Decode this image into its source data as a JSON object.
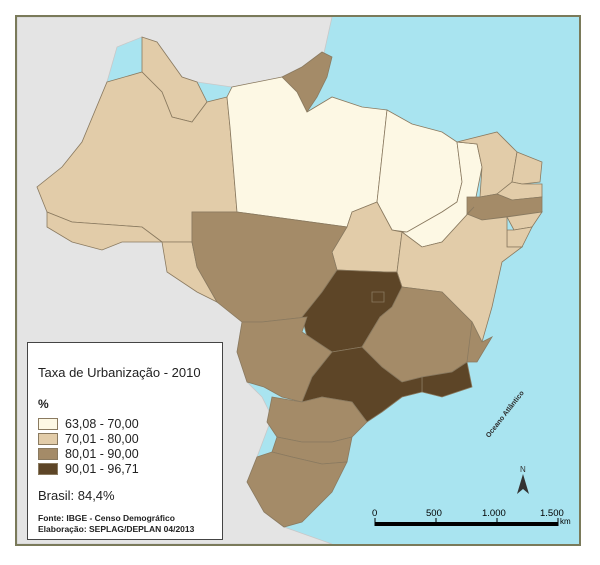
{
  "legend": {
    "title": "Taxa de Urbanização - 2010",
    "unit": "%",
    "classes": [
      {
        "label": "63,08 - 70,00",
        "color": "#fdf8e4"
      },
      {
        "label": "70,01 - 80,00",
        "color": "#e2cca9"
      },
      {
        "label": "80,01 - 90,00",
        "color": "#a48b68"
      },
      {
        "label": "90,01 - 96,71",
        "color": "#5d4527"
      }
    ],
    "brasil": "Brasil: 84,4%",
    "source": "Fonte: IBGE - Censo Demográfico",
    "credit": "Elaboração: SEPLAG/DEPLAN 04/2013"
  },
  "ocean_label": "Oceano Atlântico",
  "north_label": "N",
  "scale": {
    "ticks": [
      "0",
      "500",
      "1.000",
      "1.500"
    ],
    "unit": "km"
  },
  "colors": {
    "ocean": "#a9e4f0",
    "neighbor_land": "#e4e4e4",
    "border": "#8a7a60"
  },
  "regions": [
    {
      "name": "AM",
      "class": 1
    },
    {
      "name": "PA",
      "class": 0
    },
    {
      "name": "AP",
      "class": 2
    },
    {
      "name": "RR",
      "class": 1
    },
    {
      "name": "AC",
      "class": 1
    },
    {
      "name": "RO",
      "class": 1
    },
    {
      "name": "MA",
      "class": 0
    },
    {
      "name": "PI",
      "class": 0
    },
    {
      "name": "CE",
      "class": 1
    },
    {
      "name": "RN",
      "class": 1
    },
    {
      "name": "PB",
      "class": 1
    },
    {
      "name": "PE",
      "class": 2
    },
    {
      "name": "AL",
      "class": 1
    },
    {
      "name": "SE",
      "class": 1
    },
    {
      "name": "BA",
      "class": 1
    },
    {
      "name": "TO",
      "class": 1
    },
    {
      "name": "MT",
      "class": 2
    },
    {
      "name": "GO",
      "class": 3
    },
    {
      "name": "DF",
      "class": 3
    },
    {
      "name": "MS",
      "class": 2
    },
    {
      "name": "MG",
      "class": 2
    },
    {
      "name": "ES",
      "class": 2
    },
    {
      "name": "RJ",
      "class": 3
    },
    {
      "name": "SP",
      "class": 3
    },
    {
      "name": "PR",
      "class": 2
    },
    {
      "name": "SC",
      "class": 2
    },
    {
      "name": "RS",
      "class": 2
    }
  ]
}
